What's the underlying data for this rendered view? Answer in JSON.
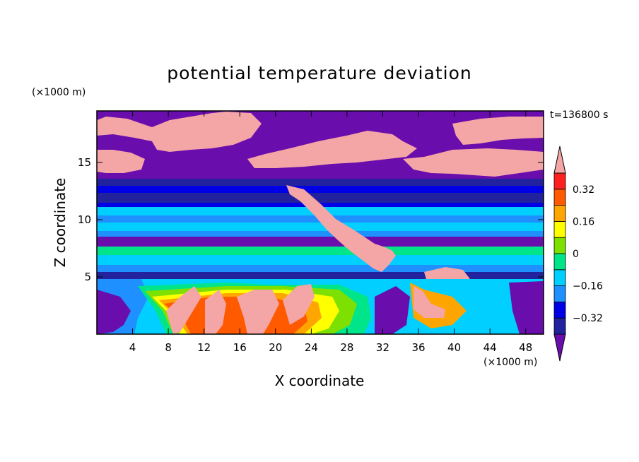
{
  "chart_data": {
    "type": "heatmap",
    "title": "potential temperature deviation",
    "xlabel": "X coordinate",
    "ylabel": "Z coordinate",
    "x_unit": "(×1000 m)",
    "y_unit": "(×1000 m)",
    "time_label": "t=136800 s",
    "xlim": [
      0,
      50
    ],
    "ylim": [
      0,
      19.5
    ],
    "x_ticks": [
      4,
      8,
      12,
      16,
      20,
      24,
      28,
      32,
      36,
      40,
      44,
      48
    ],
    "y_ticks": [
      5,
      10,
      15
    ],
    "colorbar": {
      "levels": [
        -0.4,
        -0.32,
        -0.24,
        -0.16,
        -0.08,
        0,
        0.08,
        0.16,
        0.24,
        0.32,
        0.4
      ],
      "colors": [
        "#6a0dad",
        "#22229e",
        "#0000e6",
        "#1e90ff",
        "#00cfff",
        "#00e58a",
        "#7ee000",
        "#ffff00",
        "#ffa500",
        "#ff5a00",
        "#ff2020",
        "#f4a5a5"
      ],
      "tick_labels": [
        "0.32",
        "0.16",
        "0",
        "−0.16",
        "−0.32"
      ],
      "tick_values": [
        0.32,
        0.16,
        0,
        -0.16,
        -0.32
      ],
      "extend": "both"
    }
  }
}
